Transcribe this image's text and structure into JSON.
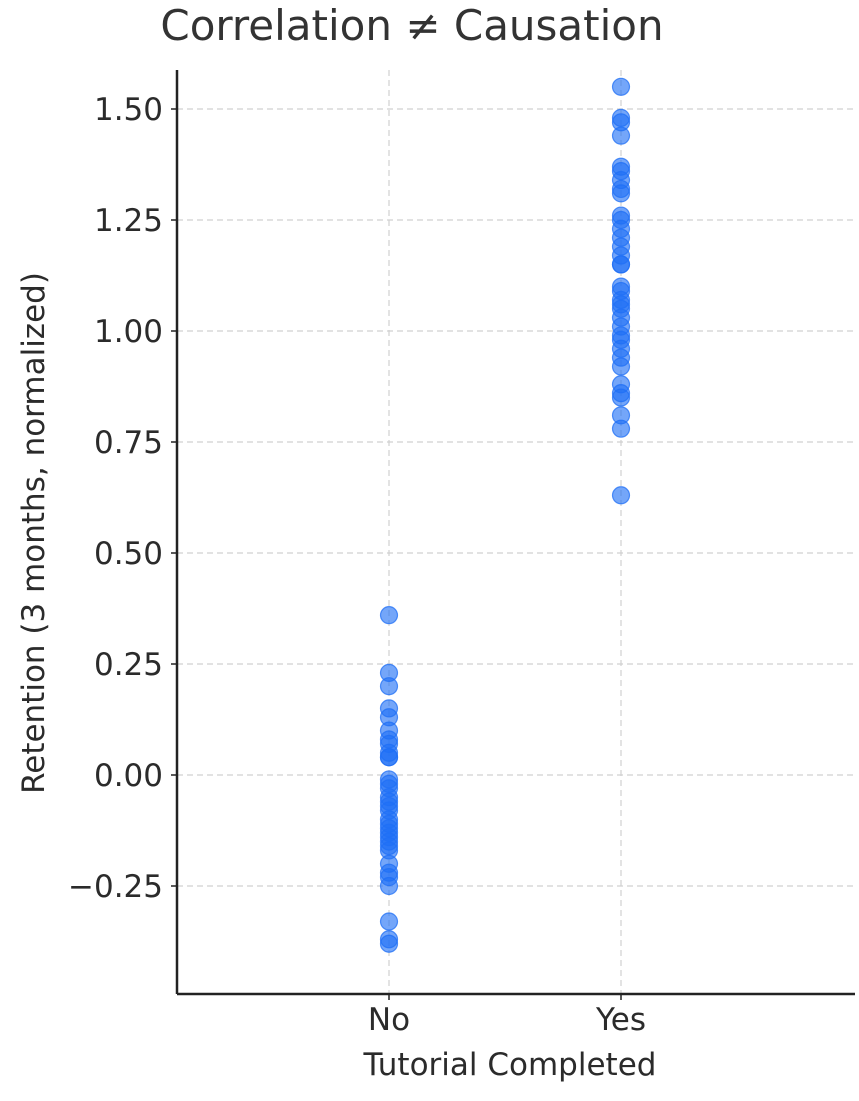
{
  "chart_data": {
    "type": "scatter",
    "title": "Correlation ≠ Causation",
    "xlabel": "Tutorial Completed",
    "ylabel": "Retention (3 months, normalized)",
    "categories": [
      "No",
      "Yes"
    ],
    "ylim": [
      -0.39,
      1.59
    ],
    "yticks": [
      -0.25,
      0.0,
      0.25,
      0.5,
      0.75,
      1.0,
      1.25,
      1.5
    ],
    "ytick_labels": [
      "−0.25",
      "0.00",
      "0.25",
      "0.50",
      "0.75",
      "1.00",
      "1.25",
      "1.50"
    ],
    "grid": true,
    "marker_color": "#1f6ff5",
    "series": [
      {
        "category": "No",
        "values": [
          0.36,
          0.23,
          0.2,
          0.15,
          0.13,
          0.1,
          0.08,
          0.07,
          0.05,
          0.04,
          0.04,
          -0.01,
          -0.02,
          -0.03,
          -0.05,
          -0.06,
          -0.07,
          -0.08,
          -0.1,
          -0.11,
          -0.12,
          -0.13,
          -0.14,
          -0.15,
          -0.16,
          -0.17,
          -0.2,
          -0.22,
          -0.23,
          -0.25,
          -0.33,
          -0.37,
          -0.38
        ]
      },
      {
        "category": "Yes",
        "values": [
          1.55,
          1.48,
          1.47,
          1.44,
          1.37,
          1.36,
          1.34,
          1.32,
          1.31,
          1.26,
          1.25,
          1.23,
          1.21,
          1.19,
          1.17,
          1.15,
          1.15,
          1.1,
          1.09,
          1.07,
          1.06,
          1.05,
          1.03,
          1.01,
          0.99,
          0.98,
          0.96,
          0.94,
          0.92,
          0.88,
          0.86,
          0.85,
          0.81,
          0.78,
          0.63
        ]
      }
    ]
  }
}
